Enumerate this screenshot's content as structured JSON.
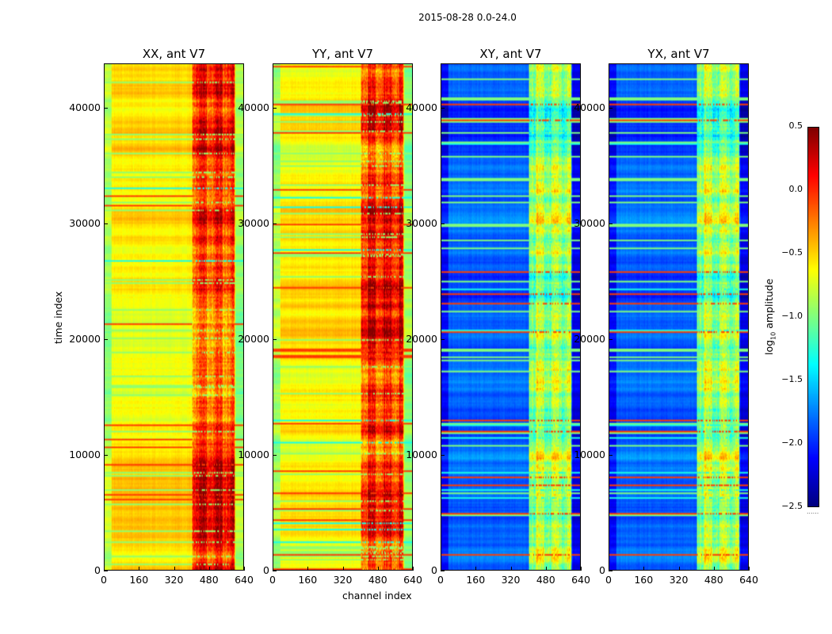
{
  "chart_data": {
    "type": "heatmap",
    "title": "2015-08-28 0.0-24.0",
    "xlabel": "channel index",
    "ylabel": "time index",
    "xlim": [
      0,
      640
    ],
    "ylim": [
      0,
      43850
    ],
    "xticks": [
      "0",
      "160",
      "320",
      "480",
      "640"
    ],
    "yticks": [
      "0",
      "10000",
      "20000",
      "30000",
      "40000"
    ],
    "panels": [
      {
        "title": "XX, ant V7",
        "base_level": -0.55,
        "band_level": -0.1,
        "seed": 3
      },
      {
        "title": "YY, ant V7",
        "base_level": -0.6,
        "band_level": -0.15,
        "seed": 7
      },
      {
        "title": "XY, ant V7",
        "base_level": -1.8,
        "band_level": -0.9,
        "seed": 11
      },
      {
        "title": "YX, ant V7",
        "base_level": -1.8,
        "band_level": -0.9,
        "seed": 11
      }
    ],
    "band_channels": [
      400,
      600
    ],
    "colorbar": {
      "label_main": "log",
      "label_sub": "10",
      "label_rest": " amplitude",
      "range": [
        -2.5,
        0.5
      ],
      "ticks": [
        "0.5",
        "0.0",
        "−0.5",
        "−1.0",
        "−1.5",
        "−2.0",
        "−2.5"
      ],
      "colormap": "jet",
      "under_marker": "......"
    }
  }
}
